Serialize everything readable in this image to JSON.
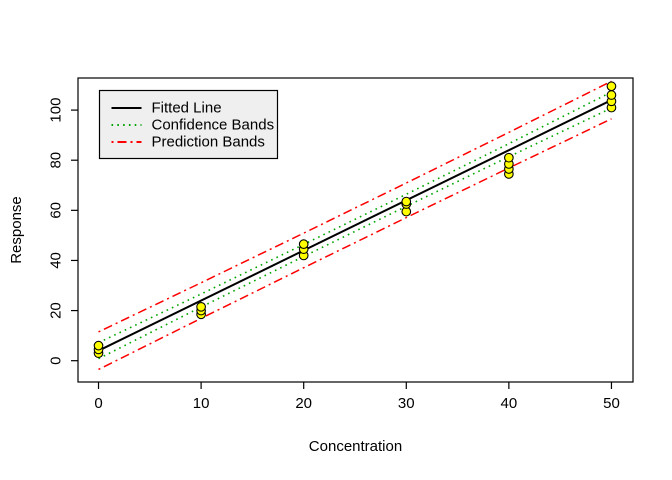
{
  "figure": {
    "background": "#FFFFFF"
  },
  "chart_data": {
    "type": "scatter",
    "title": "",
    "xlabel": "Concentration",
    "ylabel": "Response",
    "xlim": [
      -2,
      52.1
    ],
    "ylim": [
      -8.5,
      112.8
    ],
    "x_ticks": [
      0,
      10,
      20,
      30,
      40,
      50
    ],
    "y_ticks": [
      0,
      20,
      40,
      60,
      80,
      100
    ],
    "grid": false,
    "points": {
      "marker": "circle",
      "fill": "#FFFF00",
      "stroke": "#000000",
      "groups": [
        {
          "x": 0,
          "y": [
            3,
            4.5,
            6
          ]
        },
        {
          "x": 10,
          "y": [
            18.5,
            20,
            21.5
          ]
        },
        {
          "x": 20,
          "y": [
            42,
            44.5,
            46.5
          ]
        },
        {
          "x": 30,
          "y": [
            59.5,
            62.5,
            63.5
          ]
        },
        {
          "x": 40,
          "y": [
            74.5,
            76.5,
            78.5,
            81
          ]
        },
        {
          "x": 50,
          "y": [
            101,
            103.5,
            106,
            109.5
          ]
        }
      ]
    },
    "fitted_line": {
      "label": "Fitted Line",
      "color": "#000000",
      "style": "solid",
      "intercept": 4,
      "slope": 2,
      "x": [
        0,
        50
      ],
      "y": [
        4,
        104
      ]
    },
    "confidence_bands": {
      "label": "Confidence Bands",
      "color": "#00A400",
      "style": "dotted",
      "x": [
        0,
        10,
        20,
        30,
        40,
        50
      ],
      "upper": [
        7.2,
        26.6,
        46.4,
        66.4,
        86.6,
        107.2
      ],
      "lower": [
        0.8,
        21.4,
        41.6,
        61.6,
        81.4,
        100.8
      ]
    },
    "prediction_bands": {
      "label": "Prediction Bands",
      "color": "#FF0000",
      "style": "dashdot",
      "x": [
        0,
        10,
        20,
        30,
        40,
        50
      ],
      "upper": [
        11.5,
        31.1,
        50.9,
        70.9,
        91.1,
        111.5
      ],
      "lower": [
        -3.5,
        16.9,
        37.1,
        57.1,
        76.9,
        96.5
      ]
    },
    "legend": {
      "position": "top-left",
      "background": "#EFEFEF",
      "border": "#000000",
      "entries": [
        {
          "label": "Fitted Line",
          "color": "#000000",
          "style": "solid"
        },
        {
          "label": "Confidence Bands",
          "color": "#00A400",
          "style": "dotted"
        },
        {
          "label": "Prediction Bands",
          "color": "#FF0000",
          "style": "dashdot"
        }
      ]
    }
  }
}
